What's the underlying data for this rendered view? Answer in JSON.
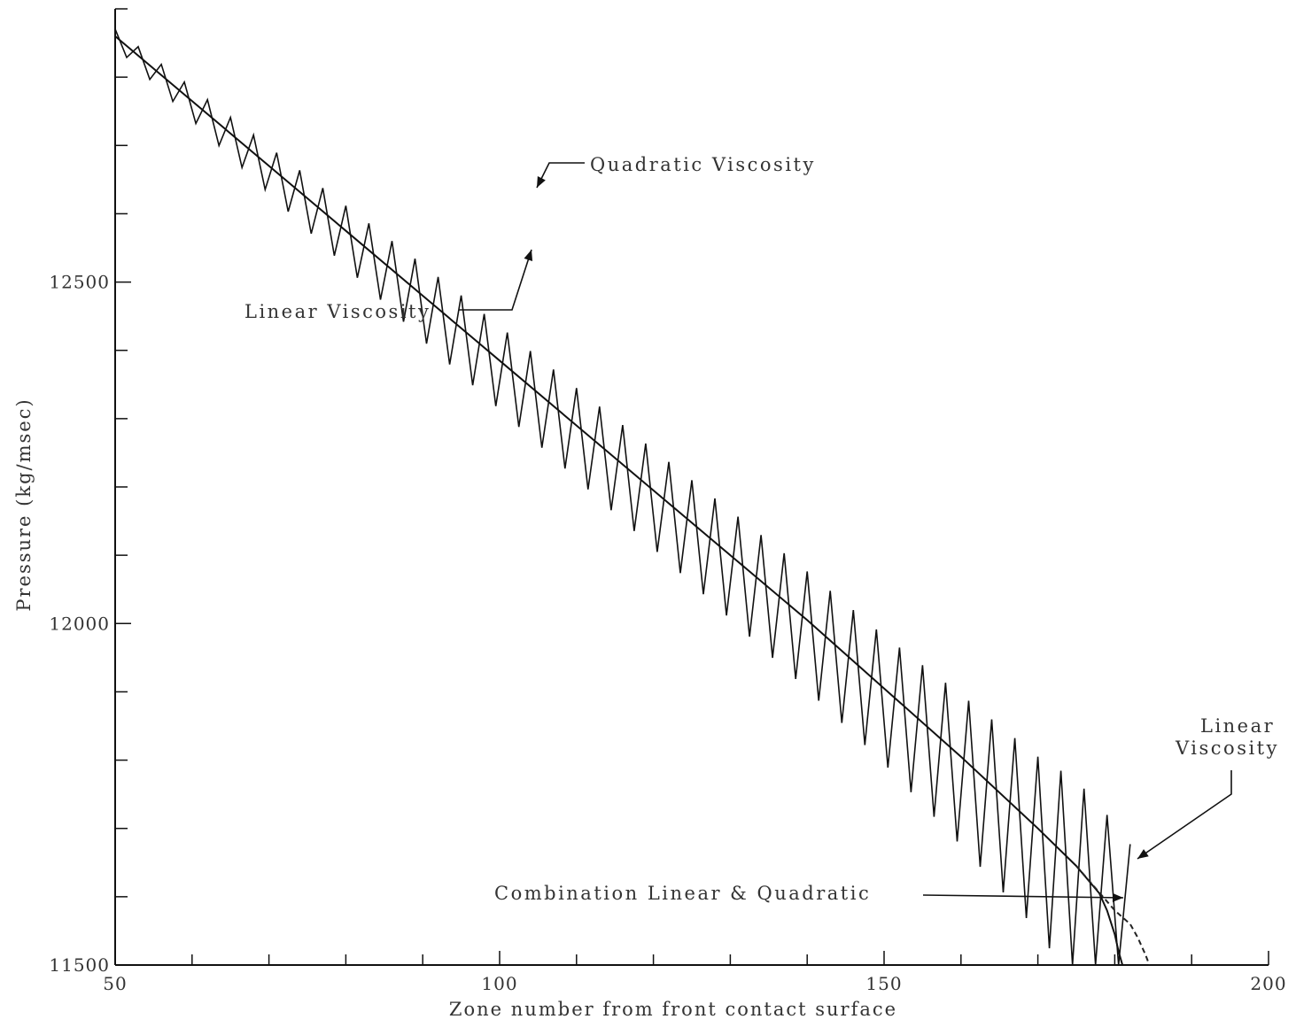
{
  "chart_data": {
    "type": "line",
    "title": "",
    "xlabel": "Zone number from front contact surface",
    "ylabel": "Pressure (kg/msec)",
    "xlim": [
      50,
      200
    ],
    "ylim": [
      11500,
      12900
    ],
    "x_ticks": [
      50,
      100,
      150,
      200
    ],
    "x_minor_step": 10,
    "y_ticks": [
      11500,
      12000,
      12500
    ],
    "y_minor_step": 100,
    "grid": false,
    "legend": "none",
    "x_tick_labels": [
      "50",
      "100",
      "150",
      "200"
    ],
    "y_tick_labels": [
      "11500",
      "12000",
      "12500"
    ],
    "series": [
      {
        "color": "#111111",
        "style": "solid",
        "x": [
          50,
          60,
          70,
          80,
          90,
          100,
          110,
          120,
          130,
          140,
          150,
          160,
          170,
          175,
          178,
          179,
          180,
          180.5,
          181
        ],
        "y": [
          12860,
          12765,
          12670,
          12575,
          12480,
          12385,
          12290,
          12195,
          12100,
          12005,
          11905,
          11805,
          11700,
          11645,
          11605,
          11580,
          11545,
          11520,
          11500
        ]
      },
      {
        "color": "#111111",
        "style": "solid",
        "oscillation": {
          "x_start": 50,
          "x_end": 183,
          "period_zones": 3,
          "amplitude": [
            [
              50,
              15
            ],
            [
              90,
              65
            ],
            [
              120,
              85
            ],
            [
              150,
              110
            ],
            [
              170,
              150
            ],
            [
              180,
              210
            ]
          ]
        },
        "x": [
          50,
          60,
          70,
          80,
          90,
          100,
          110,
          120,
          130,
          140,
          150,
          160,
          170,
          175,
          180,
          182,
          183
        ],
        "y": [
          12860,
          12765,
          12670,
          12575,
          12480,
          12385,
          12290,
          12195,
          12100,
          12005,
          11905,
          11805,
          11700,
          11645,
          11560,
          11530,
          11500
        ]
      },
      {
        "color": "#222222",
        "style": "dashed",
        "x": [
          175,
          180,
          182,
          183,
          184,
          184.5
        ],
        "y": [
          11645,
          11580,
          11560,
          11540,
          11515,
          11500
        ]
      }
    ],
    "annotations": [
      {
        "text": "Quadratic Viscosity",
        "x": 104,
        "y": 12500
      },
      {
        "text": "Linear Viscosity",
        "x": 101,
        "y": 12430
      },
      {
        "text": "Linear",
        "x": 184,
        "y": 11590
      },
      {
        "text": "Viscosity",
        "x": 184,
        "y": 11590
      },
      {
        "text": "Combination Linear & Quadratic",
        "x": 181,
        "y": 11530
      }
    ]
  }
}
